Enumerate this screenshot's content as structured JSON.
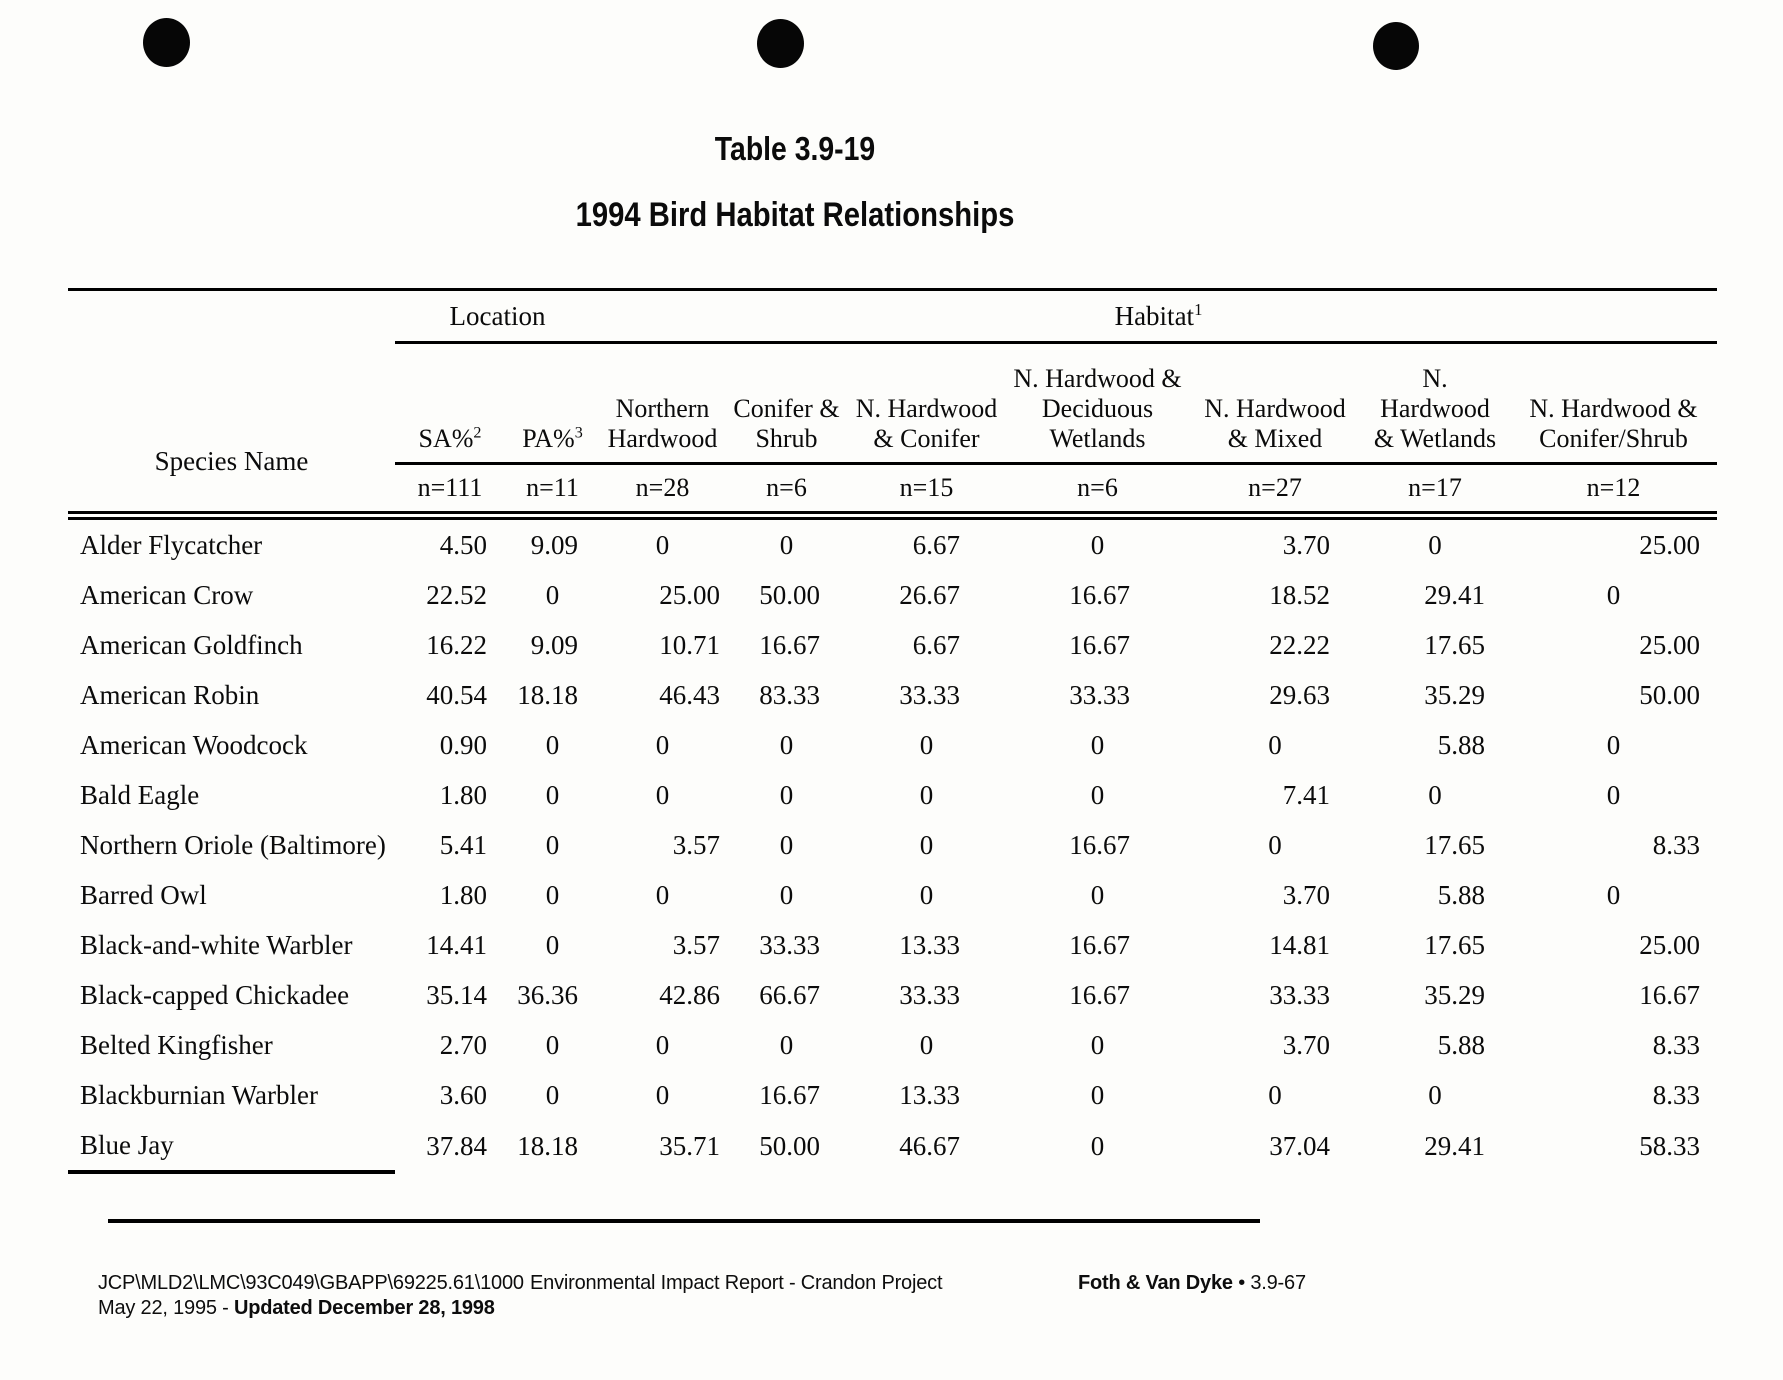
{
  "page": {
    "table_label": "Table 3.9-19",
    "title": "1994 Bird Habitat Relationships"
  },
  "table": {
    "species_header": "Species Name",
    "groups": [
      {
        "label": "Location",
        "sup": ""
      },
      {
        "label": "Habitat",
        "sup": "1"
      }
    ],
    "columns": [
      {
        "label": "SA%",
        "sup": "2",
        "n": "n=111"
      },
      {
        "label": "PA%",
        "sup": "3",
        "n": "n=11"
      },
      {
        "label": "Northern\nHardwood",
        "sup": "",
        "n": "n=28"
      },
      {
        "label": "Conifer &\nShrub",
        "sup": "",
        "n": "n=6"
      },
      {
        "label": "N. Hardwood\n& Conifer",
        "sup": "",
        "n": "n=15"
      },
      {
        "label": "N. Hardwood &\nDeciduous\nWetlands",
        "sup": "",
        "n": "n=6"
      },
      {
        "label": "N. Hardwood\n& Mixed",
        "sup": "",
        "n": "n=27"
      },
      {
        "label": "N. Hardwood\n& Wetlands",
        "sup": "",
        "n": "n=17"
      },
      {
        "label": "N. Hardwood &\nConifer/Shrub",
        "sup": "",
        "n": "n=12"
      }
    ],
    "rows": [
      {
        "species": "Alder Flycatcher",
        "values": [
          "4.50",
          "9.09",
          "0",
          "0",
          "6.67",
          "0",
          "3.70",
          "0",
          "25.00"
        ]
      },
      {
        "species": "American Crow",
        "values": [
          "22.52",
          "0",
          "25.00",
          "50.00",
          "26.67",
          "16.67",
          "18.52",
          "29.41",
          "0"
        ]
      },
      {
        "species": "American Goldfinch",
        "values": [
          "16.22",
          "9.09",
          "10.71",
          "16.67",
          "6.67",
          "16.67",
          "22.22",
          "17.65",
          "25.00"
        ]
      },
      {
        "species": "American Robin",
        "values": [
          "40.54",
          "18.18",
          "46.43",
          "83.33",
          "33.33",
          "33.33",
          "29.63",
          "35.29",
          "50.00"
        ]
      },
      {
        "species": "American Woodcock",
        "values": [
          "0.90",
          "0",
          "0",
          "0",
          "0",
          "0",
          "0",
          "5.88",
          "0"
        ]
      },
      {
        "species": "Bald Eagle",
        "values": [
          "1.80",
          "0",
          "0",
          "0",
          "0",
          "0",
          "7.41",
          "0",
          "0"
        ]
      },
      {
        "species": "Northern Oriole (Baltimore)",
        "values": [
          "5.41",
          "0",
          "3.57",
          "0",
          "0",
          "16.67",
          "0",
          "17.65",
          "8.33"
        ]
      },
      {
        "species": "Barred Owl",
        "values": [
          "1.80",
          "0",
          "0",
          "0",
          "0",
          "0",
          "3.70",
          "5.88",
          "0"
        ]
      },
      {
        "species": "Black-and-white Warbler",
        "values": [
          "14.41",
          "0",
          "3.57",
          "33.33",
          "13.33",
          "16.67",
          "14.81",
          "17.65",
          "25.00"
        ]
      },
      {
        "species": "Black-capped Chickadee",
        "values": [
          "35.14",
          "36.36",
          "42.86",
          "66.67",
          "33.33",
          "16.67",
          "33.33",
          "35.29",
          "16.67"
        ]
      },
      {
        "species": "Belted Kingfisher",
        "values": [
          "2.70",
          "0",
          "0",
          "0",
          "0",
          "0",
          "3.70",
          "5.88",
          "8.33"
        ]
      },
      {
        "species": "Blackburnian Warbler",
        "values": [
          "3.60",
          "0",
          "0",
          "16.67",
          "13.33",
          "0",
          "0",
          "0",
          "8.33"
        ]
      },
      {
        "species": "Blue Jay",
        "values": [
          "37.84",
          "18.18",
          "35.71",
          "50.00",
          "46.67",
          "0",
          "37.04",
          "29.41",
          "58.33"
        ]
      }
    ]
  },
  "footer": {
    "doc_code": "JCP\\MLD2\\LMC\\93C049\\GBAPP\\69225.61\\1000",
    "date_prefix": "May 22, 1995 - ",
    "date_updated": "Updated December 28, 1998",
    "report_title": "Environmental Impact Report - Crandon Project",
    "firm": "Foth & Van Dyke",
    "bullet": "•",
    "page_ref": "3.9-67"
  }
}
